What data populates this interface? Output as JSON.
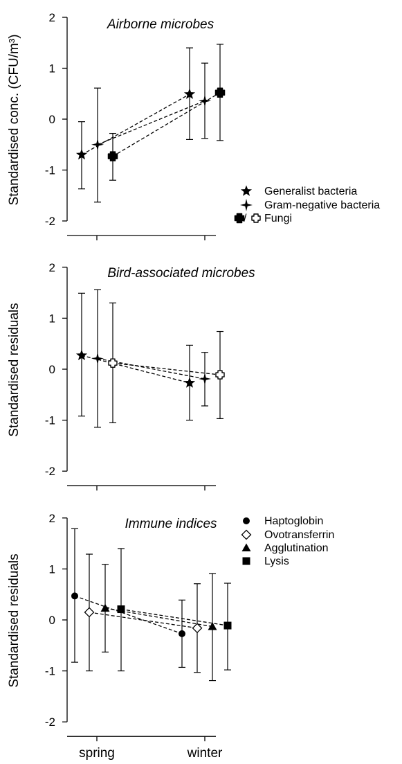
{
  "x_labels": [
    "spring",
    "winter"
  ],
  "chart_data": [
    {
      "type": "scatter",
      "title": "Airborne microbes",
      "ylabel": "Standardised conc. (CFU/m³)",
      "ylim": [
        -2,
        2
      ],
      "yticks": [
        "-2",
        "-1",
        "0",
        "1",
        "2"
      ],
      "categories": [
        "spring",
        "winter"
      ],
      "series": [
        {
          "name": "Generalist bacteria",
          "marker": "star",
          "values": [
            -0.7,
            0.49
          ],
          "lower": [
            -1.37,
            -0.4
          ],
          "upper": [
            -0.05,
            1.4
          ]
        },
        {
          "name": "Gram-negative bacteria",
          "marker": "four-point-star",
          "values": [
            -0.5,
            0.36
          ],
          "lower": [
            -1.63,
            -0.38
          ],
          "upper": [
            0.61,
            1.1
          ]
        },
        {
          "name": "Fungi",
          "marker": "filled-cross",
          "values": [
            -0.73,
            0.52
          ],
          "lower": [
            -1.2,
            -0.42
          ],
          "upper": [
            -0.28,
            1.47
          ]
        }
      ],
      "legend": {
        "position": "right",
        "labels": [
          "Generalist bacteria",
          "Gram-negative bacteria",
          "Fungi"
        ],
        "fungi_marker_separator": "/"
      }
    },
    {
      "type": "scatter",
      "title": "Bird-associated microbes",
      "ylabel": "Standardised residuals",
      "ylim": [
        -2,
        2
      ],
      "yticks": [
        "-2",
        "-1",
        "0",
        "1",
        "2"
      ],
      "categories": [
        "spring",
        "winter"
      ],
      "series": [
        {
          "name": "Generalist bacteria",
          "marker": "star",
          "values": [
            0.27,
            -0.27
          ],
          "lower": [
            -0.92,
            -1.0
          ],
          "upper": [
            1.49,
            0.47
          ]
        },
        {
          "name": "Gram-negative bacteria",
          "marker": "four-point-star",
          "values": [
            0.21,
            -0.19
          ],
          "lower": [
            -1.14,
            -0.72
          ],
          "upper": [
            1.56,
            0.33
          ]
        },
        {
          "name": "Fungi",
          "marker": "open-cross",
          "values": [
            0.12,
            -0.11
          ],
          "lower": [
            -1.05,
            -0.97
          ],
          "upper": [
            1.3,
            0.74
          ]
        }
      ]
    },
    {
      "type": "scatter",
      "title": "Immune indices",
      "ylabel": "Standardised residuals",
      "ylim": [
        -2,
        2
      ],
      "yticks": [
        "-2",
        "-1",
        "0",
        "1",
        "2"
      ],
      "categories": [
        "spring",
        "winter"
      ],
      "series": [
        {
          "name": "Haptoglobin",
          "marker": "circle",
          "values": [
            0.47,
            -0.27
          ],
          "lower": [
            -0.83,
            -0.93
          ],
          "upper": [
            1.79,
            0.39
          ]
        },
        {
          "name": "Ovotransferrin",
          "marker": "open-diamond",
          "values": [
            0.15,
            -0.16
          ],
          "lower": [
            -1.0,
            -1.03
          ],
          "upper": [
            1.29,
            0.71
          ]
        },
        {
          "name": "Agglutination",
          "marker": "triangle",
          "values": [
            0.23,
            -0.13
          ],
          "lower": [
            -0.63,
            -1.19
          ],
          "upper": [
            1.09,
            0.91
          ]
        },
        {
          "name": "Lysis",
          "marker": "square",
          "values": [
            0.21,
            -0.11
          ],
          "lower": [
            -1.0,
            -0.98
          ],
          "upper": [
            1.4,
            0.72
          ]
        }
      ],
      "legend": {
        "position": "top-right",
        "labels": [
          "Haptoglobin",
          "Ovotransferrin",
          "Agglutination",
          "Lysis"
        ]
      }
    }
  ]
}
